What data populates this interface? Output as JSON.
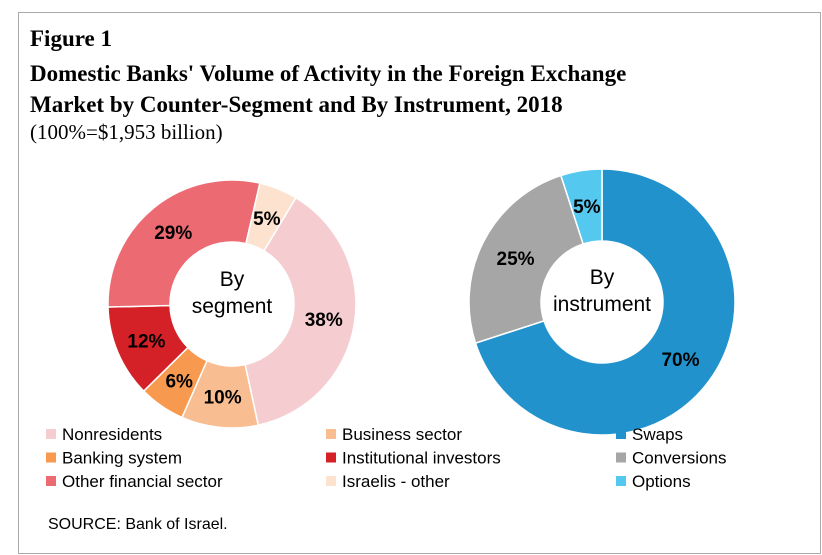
{
  "header": {
    "figure_label": "Figure 1",
    "title": [
      "Domestic Banks' Volume of Activity in the Foreign Exchange",
      "Market by Counter-Segment and By Instrument, 2018"
    ],
    "subtitle": "(100%=$1,953 billion)"
  },
  "chart_data": [
    {
      "type": "donut",
      "center_label": [
        "By",
        "segment"
      ],
      "categories": [
        "Nonresidents",
        "Business sector",
        "Banking system",
        "Institutional investors",
        "Other financial sector",
        "Israelis - other"
      ],
      "values": [
        38,
        10,
        6,
        12,
        29,
        5
      ],
      "value_labels": [
        "38%",
        "10%",
        "6%",
        "12%",
        "29%",
        "5%"
      ],
      "colors": [
        "#f5cdd0",
        "#f9bd92",
        "#f79a50",
        "#d42027",
        "#ec6a72",
        "#fde2cf"
      ]
    },
    {
      "type": "donut",
      "center_label": [
        "By",
        "instrument"
      ],
      "categories": [
        "Swaps",
        "Conversions",
        "Options"
      ],
      "values": [
        70,
        25,
        5
      ],
      "value_labels": [
        "70%",
        "25%",
        "5%"
      ],
      "colors": [
        "#2192cc",
        "#a6a6a6",
        "#55c8ef"
      ]
    }
  ],
  "source": "SOURCE: Bank of Israel."
}
